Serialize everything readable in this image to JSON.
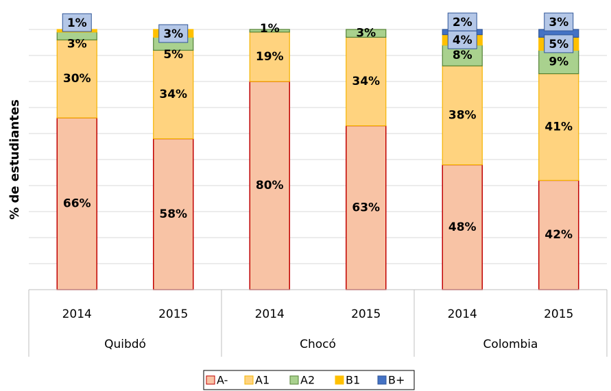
{
  "chart_data": {
    "type": "stacked_bar",
    "ylabel": "% de estudiantes",
    "categories": [
      "2014",
      "2015",
      "2014",
      "2015",
      "2014",
      "2015"
    ],
    "groups": [
      "Quibdó",
      "Chocó",
      "Colombia"
    ],
    "ylim": [
      0,
      100
    ],
    "yticks": [
      0,
      10,
      20,
      30,
      40,
      50,
      60,
      70,
      80,
      90,
      100
    ],
    "grid": true,
    "legend": "bottom",
    "series": [
      {
        "name": "A-",
        "color": "#f8c3a5",
        "values": [
          66,
          58,
          80,
          63,
          48,
          42
        ],
        "value_labels": [
          "66%",
          "58%",
          "80%",
          "63%",
          "48%",
          "42%"
        ]
      },
      {
        "name": "A1",
        "color": "#ffd37f",
        "values": [
          30,
          34,
          19,
          34,
          38,
          41
        ],
        "value_labels": [
          "30%",
          "34%",
          "19%",
          "34%",
          "38%",
          "41%"
        ]
      },
      {
        "name": "A2",
        "color": "#a9d18e",
        "values": [
          3,
          5,
          1,
          3,
          8,
          9
        ],
        "value_labels": [
          "3%",
          "5%",
          "1%",
          "3%",
          "8%",
          "9%"
        ]
      },
      {
        "name": "B1",
        "color": "#ffc000",
        "values": [
          1,
          3,
          0,
          0,
          4,
          5
        ],
        "value_labels": [
          "1%",
          "3%",
          null,
          null,
          "4%",
          "5%"
        ]
      },
      {
        "name": "B+",
        "color": "#4472c4",
        "values": [
          0,
          0,
          0,
          0,
          2,
          3
        ],
        "value_labels": [
          null,
          null,
          null,
          null,
          "2%",
          "3%"
        ]
      }
    ]
  }
}
